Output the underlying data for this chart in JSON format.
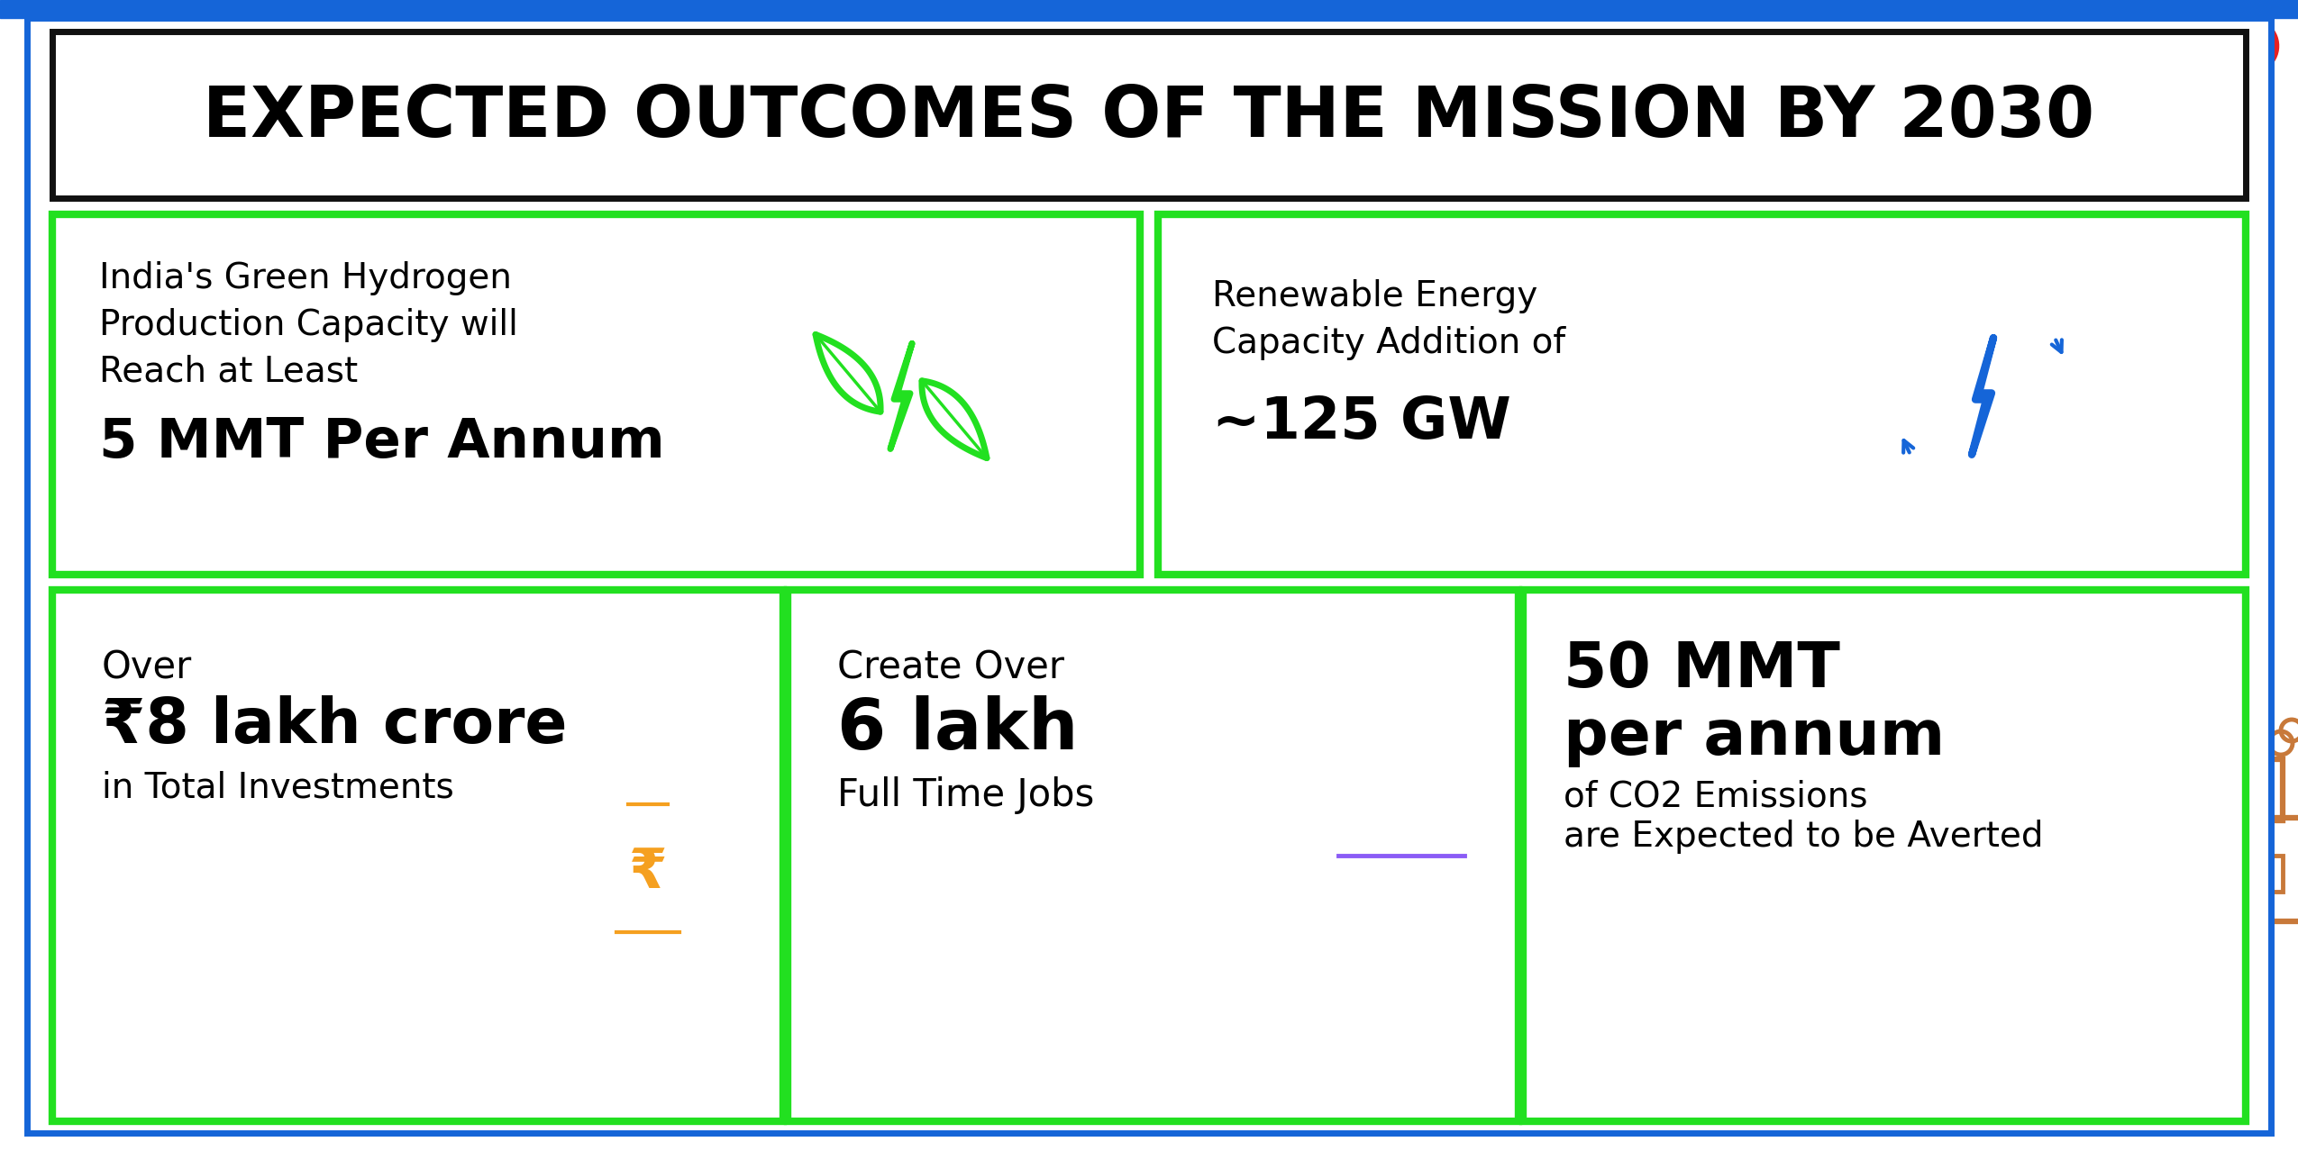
{
  "title": "EXPECTED OUTCOMES OF THE MISSION BY 2030",
  "bg": "#ffffff",
  "blue": "#1565d8",
  "green": "#22e020",
  "black": "#111111",
  "orange": "#f5a020",
  "purple": "#8b5cf6",
  "brown": "#c8793a",
  "card1_line1": "India's Green Hydrogen",
  "card1_line2": "Production Capacity will",
  "card1_line3": "Reach at Least",
  "card1_bold": "5 MMT Per Annum",
  "card2_line1": "Renewable Energy",
  "card2_line2": "Capacity Addition of",
  "card2_bold": "~125 GW",
  "card3_pre": "Over",
  "card3_bold": "₹8 lakh crore",
  "card3_sub": "in Total Investments",
  "card4_pre": "Create Over",
  "card4_bold": "6 lakh",
  "card4_sub": "Full Time Jobs",
  "card5_bold_line1": "50 MMT",
  "card5_bold_line2": "per annum",
  "card5_sub_line1": "of CO2 Emissions",
  "card5_sub_line2": "are Expected to be Averted"
}
